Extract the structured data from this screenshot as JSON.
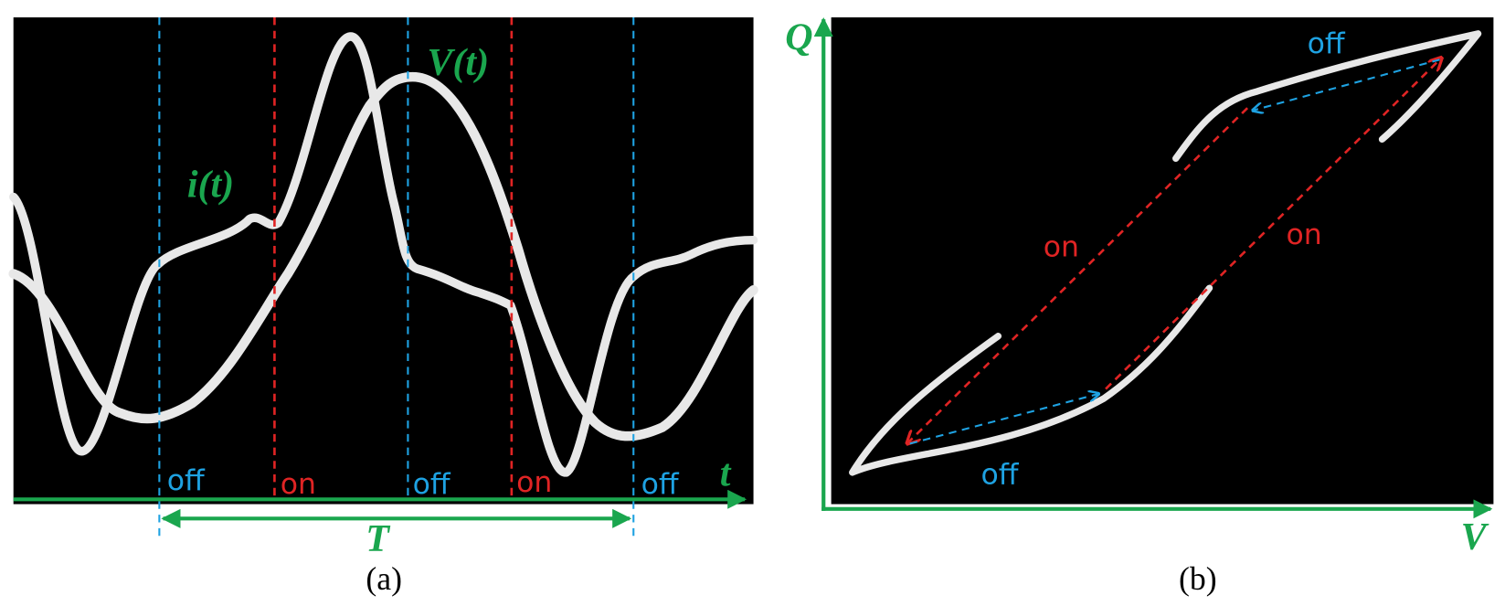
{
  "panel_a": {
    "label": "(a)",
    "curve_labels": [
      "i(t)",
      "V(t)"
    ],
    "phase_labels": [
      "off",
      "on",
      "off",
      "on",
      "off"
    ],
    "time_axis": "t",
    "period": "T"
  },
  "panel_b": {
    "label": "(b)",
    "y_axis": "Q",
    "x_axis": "V",
    "phase_labels": [
      "off",
      "on",
      "on",
      "off"
    ]
  }
}
